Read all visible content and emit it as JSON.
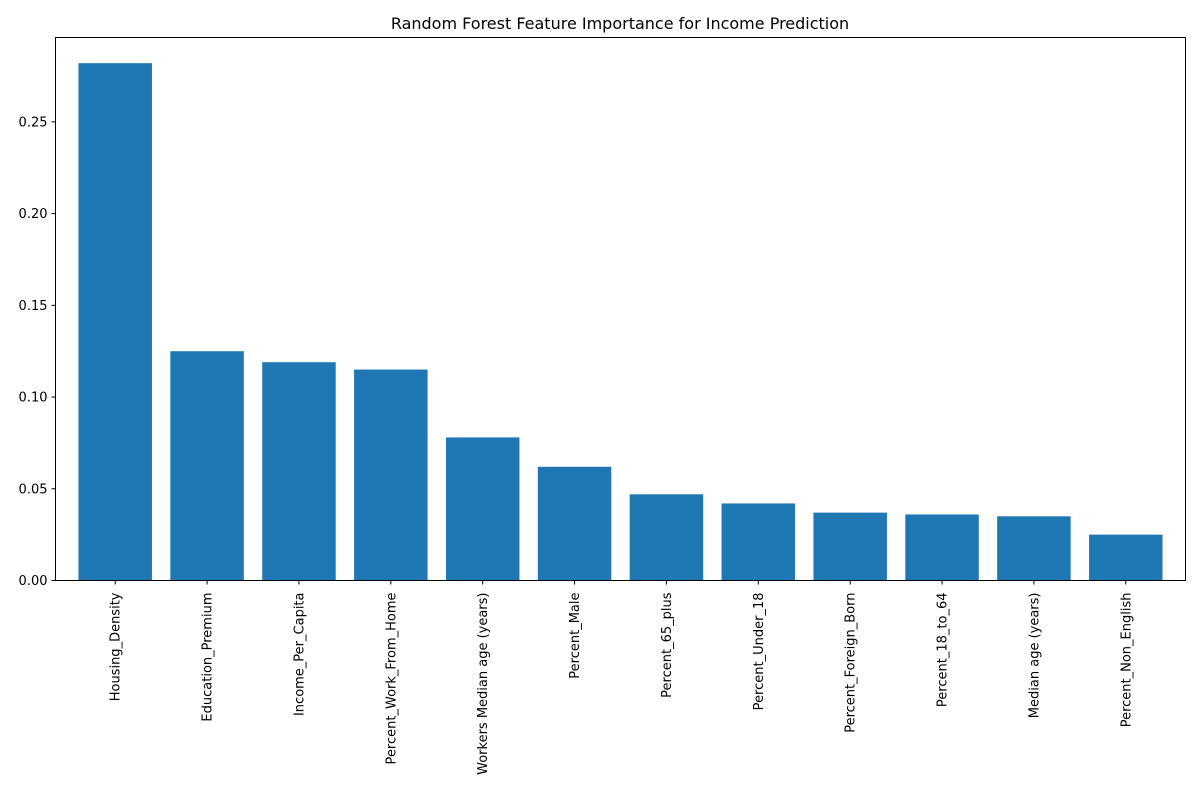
{
  "chart_data": {
    "type": "bar",
    "title": "Random Forest Feature Importance for Income Prediction",
    "xlabel": "",
    "ylabel": "",
    "categories": [
      "Housing_Density",
      "Education_Premium",
      "Income_Per_Capita",
      "Percent_Work_From_Home",
      "Workers Median age (years)",
      "Percent_Male",
      "Percent_65_plus",
      "Percent_Under_18",
      "Percent_Foreign_Born",
      "Percent_18_to_64",
      "Median age (years)",
      "Percent_Non_English"
    ],
    "values": [
      0.282,
      0.125,
      0.119,
      0.115,
      0.078,
      0.062,
      0.047,
      0.042,
      0.037,
      0.036,
      0.035,
      0.025
    ],
    "ylim": [
      0,
      0.296
    ],
    "yticks": [
      0.0,
      0.05,
      0.1,
      0.15,
      0.2,
      0.25
    ],
    "ytick_labels": [
      "0.00",
      "0.05",
      "0.10",
      "0.15",
      "0.20",
      "0.25"
    ],
    "bar_color": "#1f77b4",
    "grid": false,
    "legend": "none"
  }
}
